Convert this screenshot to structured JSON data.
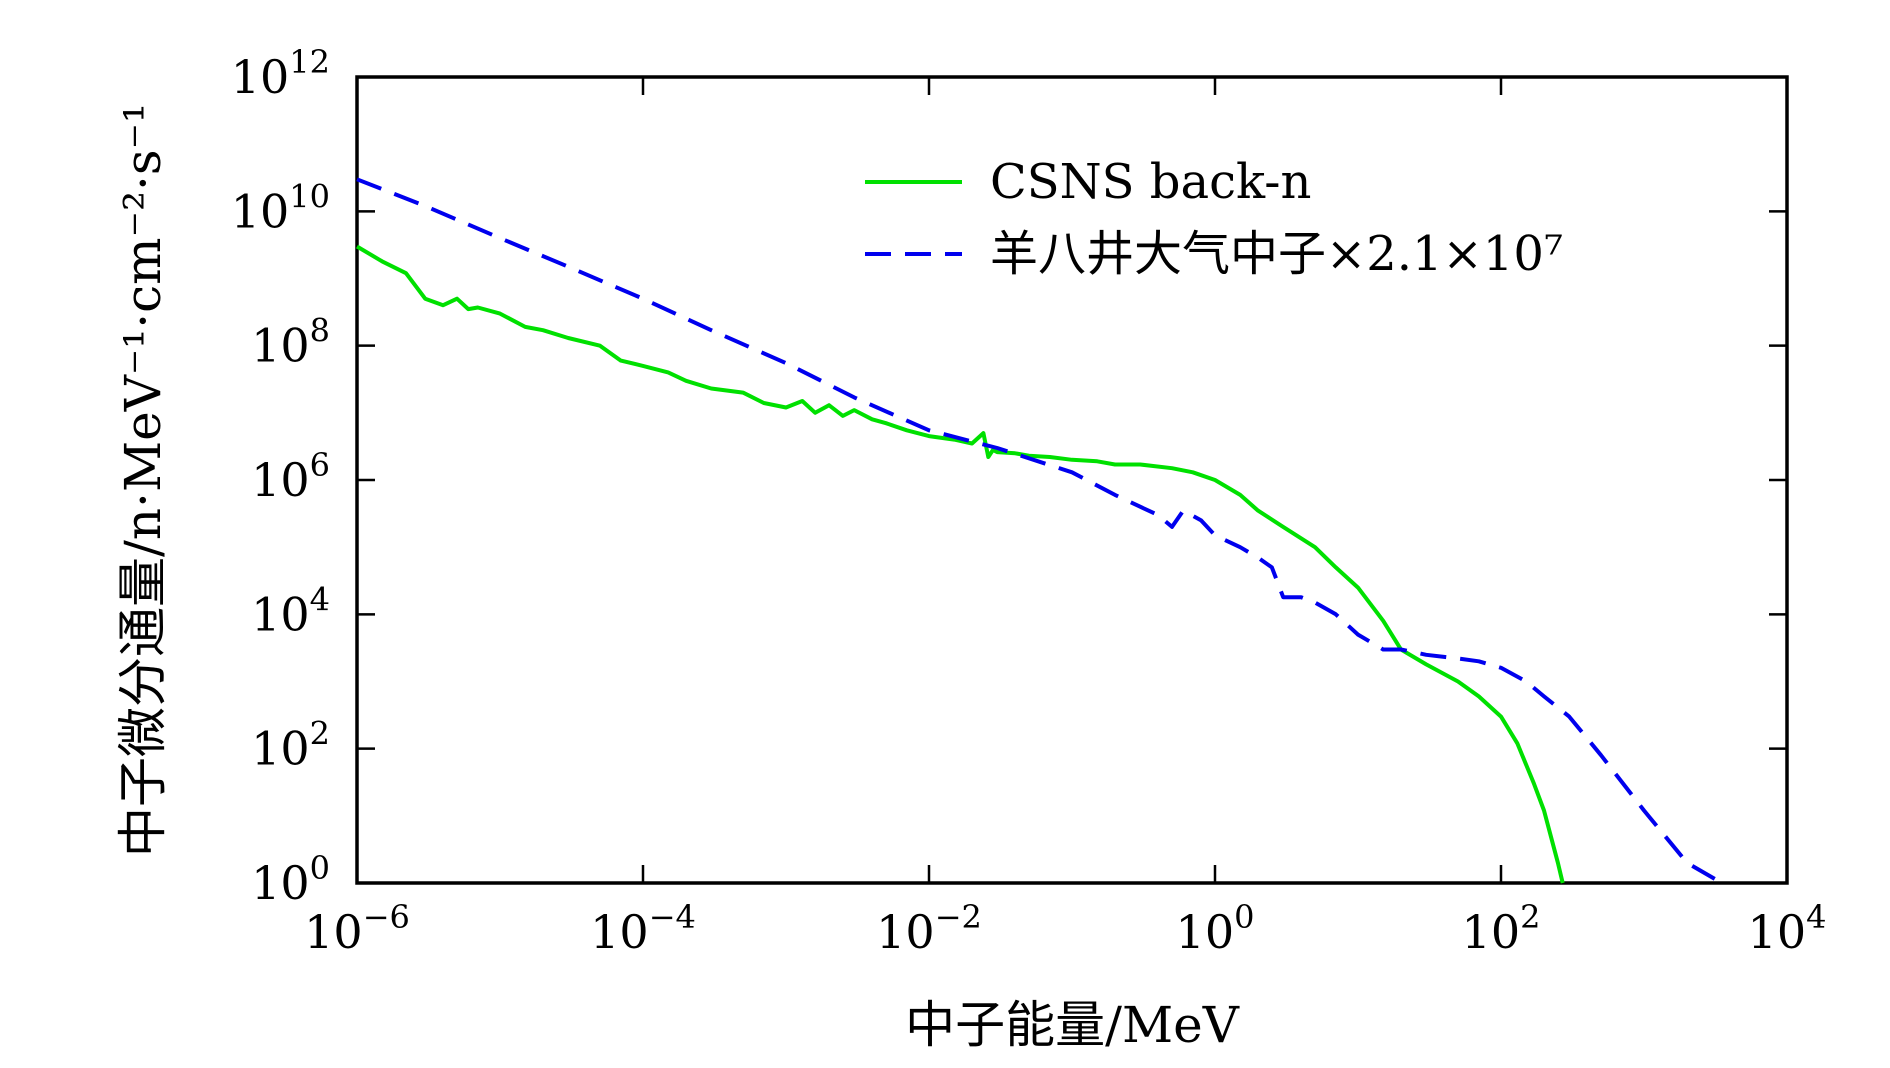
{
  "chart_data": {
    "type": "line",
    "title": "",
    "xlabel": "中子能量/MeV",
    "ylabel": "中子微分通量/n·MeV⁻¹·cm⁻²·s⁻¹",
    "x_scale": "log",
    "y_scale": "log",
    "xlim": [
      1e-06,
      10000.0
    ],
    "ylim": [
      1,
      1000000000000.0
    ],
    "grid": false,
    "legend_position": "top-right",
    "x_ticks": [
      {
        "base": "10",
        "exp": "−6",
        "value": 1e-06
      },
      {
        "base": "10",
        "exp": "−4",
        "value": 0.0001
      },
      {
        "base": "10",
        "exp": "−2",
        "value": 0.01
      },
      {
        "base": "10",
        "exp": "0",
        "value": 1
      },
      {
        "base": "10",
        "exp": "2",
        "value": 100
      },
      {
        "base": "10",
        "exp": "4",
        "value": 10000
      }
    ],
    "y_ticks": [
      {
        "base": "10",
        "exp": "0",
        "value": 1
      },
      {
        "base": "10",
        "exp": "2",
        "value": 100
      },
      {
        "base": "10",
        "exp": "4",
        "value": 10000
      },
      {
        "base": "10",
        "exp": "6",
        "value": 1000000.0
      },
      {
        "base": "10",
        "exp": "8",
        "value": 100000000.0
      },
      {
        "base": "10",
        "exp": "10",
        "value": 10000000000.0
      },
      {
        "base": "10",
        "exp": "12",
        "value": 1000000000000.0
      }
    ],
    "series": [
      {
        "name": "CSNS back-n",
        "color": "#00e000",
        "style": "solid",
        "x": [
          1e-06,
          1.5e-06,
          2.2e-06,
          3e-06,
          4e-06,
          5e-06,
          6e-06,
          7e-06,
          1e-05,
          1.5e-05,
          2e-05,
          3e-05,
          5e-05,
          7e-05,
          0.0001,
          0.00015,
          0.0002,
          0.0003,
          0.0005,
          0.0007,
          0.001,
          0.0013,
          0.0016,
          0.002,
          0.0025,
          0.003,
          0.004,
          0.005,
          0.007,
          0.01,
          0.015,
          0.02,
          0.024,
          0.026,
          0.028,
          0.03,
          0.04,
          0.05,
          0.07,
          0.1,
          0.15,
          0.2,
          0.3,
          0.5,
          0.7,
          1,
          1.5,
          2,
          3,
          5,
          7,
          10,
          15,
          20,
          30,
          50,
          70,
          100,
          130,
          170,
          200,
          250,
          270
        ],
        "y": [
          3000000000.0,
          1800000000.0,
          1200000000.0,
          500000000.0,
          400000000.0,
          500000000.0,
          350000000.0,
          370000000.0,
          300000000.0,
          190000000.0,
          170000000.0,
          130000000.0,
          100000000.0,
          60000000.0,
          50000000.0,
          40000000.0,
          30000000.0,
          23000000.0,
          20000000.0,
          14000000.0,
          12000000.0,
          15000000.0,
          10000000.0,
          13000000.0,
          9000000.0,
          11000000.0,
          8000000.0,
          7000000.0,
          5500000.0,
          4500000.0,
          4000000.0,
          3500000.0,
          5000000.0,
          2200000.0,
          2800000.0,
          2600000.0,
          2500000.0,
          2300000.0,
          2200000.0,
          2000000.0,
          1900000.0,
          1700000.0,
          1700000.0,
          1500000.0,
          1300000.0,
          1000000.0,
          600000.0,
          350000.0,
          200000.0,
          100000.0,
          50000.0,
          25000.0,
          8000.0,
          3000.0,
          1800.0,
          1000.0,
          600.0,
          300.0,
          120.0,
          30,
          12,
          2,
          1
        ]
      },
      {
        "name": "羊八井大气中子×2.1×10⁷",
        "color": "#0000ee",
        "style": "dashed",
        "x": [
          1e-06,
          3e-06,
          1e-05,
          3e-05,
          0.0001,
          0.0003,
          0.001,
          0.003,
          0.01,
          0.03,
          0.1,
          0.2,
          0.4,
          0.5,
          0.6,
          0.8,
          1,
          1.5,
          2,
          2.5,
          3,
          4,
          5,
          7,
          10,
          15,
          20,
          30,
          50,
          70,
          100,
          150,
          200,
          300,
          500,
          1000,
          2000,
          3500
        ],
        "y": [
          30000000000.0,
          12000000000.0,
          4000000000.0,
          1500000000.0,
          500000000.0,
          170000000.0,
          55000000.0,
          17000000.0,
          5500000.0,
          3000000.0,
          1300000.0,
          600000.0,
          300000.0,
          200000.0,
          350000.0,
          250000.0,
          150000.0,
          100000.0,
          70000.0,
          50000.0,
          18000.0,
          18000.0,
          15000.0,
          10000.0,
          5000.0,
          3000.0,
          3000.0,
          2500.0,
          2200.0,
          2000.0,
          1600.0,
          1000.0,
          600.0,
          300.0,
          80,
          12,
          2,
          1
        ]
      }
    ]
  }
}
